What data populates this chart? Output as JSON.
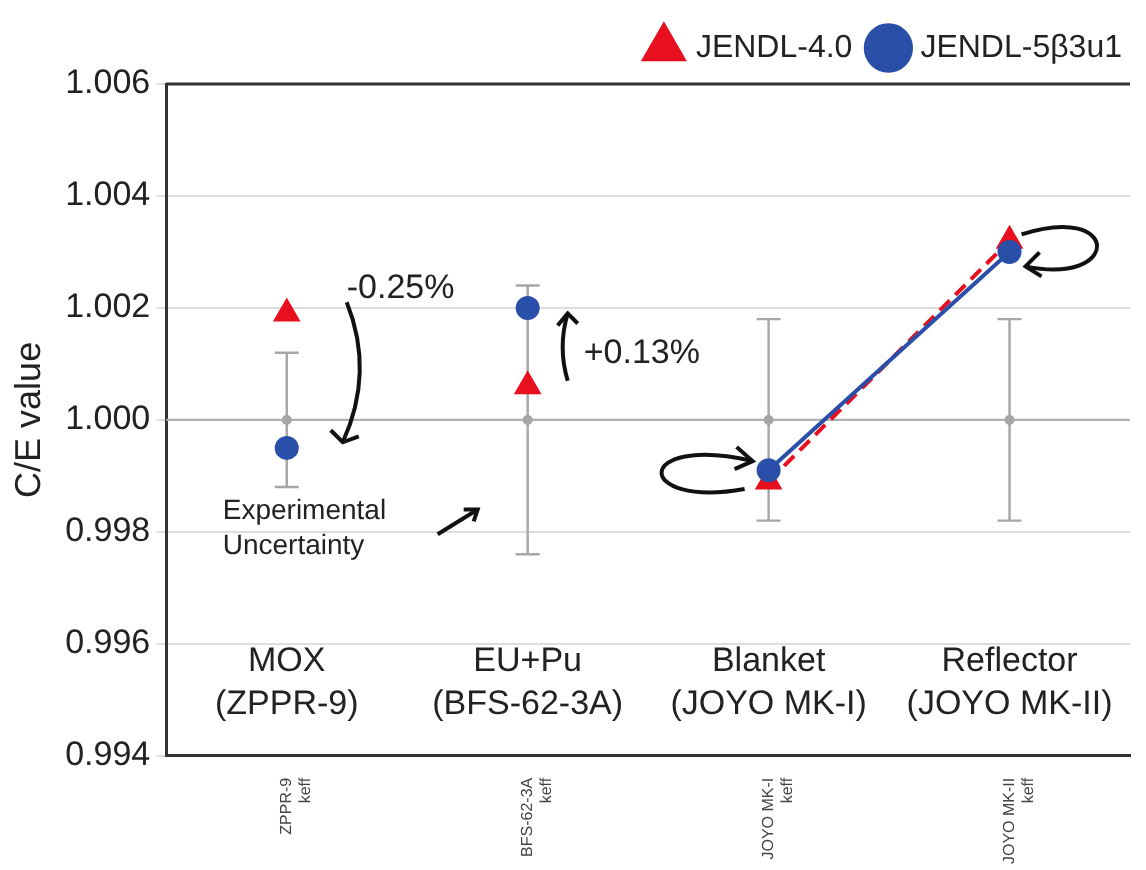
{
  "chart_data": {
    "type": "scatter",
    "ylabel": "C/E value",
    "categories": [
      "ZPPR-9\nkeff",
      "BFS-62-3A\nkeff",
      "JOYO MK-I\nkeff",
      "JOYO MK-II\nkeff"
    ],
    "ylim": [
      0.994,
      1.006
    ],
    "yticks": [
      0.994,
      0.996,
      0.998,
      {
        "value": 1,
        "label": "1.000"
      },
      1.002,
      1.004,
      1.006
    ],
    "ref_lines": [
      {
        "axis": "y",
        "value": 1,
        "color": "#b0b0b0"
      }
    ],
    "grid": "y",
    "legend": "top right",
    "series": [
      {
        "color": "#a6a6a6",
        "marker": "circle",
        "values": [
          1.0,
          1.0,
          1.0,
          1.0
        ],
        "errors": [
          0.0012,
          0.0024,
          0.0018,
          0.0018
        ]
      },
      {
        "type": "line",
        "color": "#e8101e",
        "marker": "none",
        "line_style": "dashed",
        "values": [
          null,
          null,
          0.9989,
          1.0032
        ]
      },
      {
        "type": "line",
        "color": "#2a4fa8",
        "marker": "none",
        "line_style": "solid",
        "values": [
          null,
          null,
          0.9991,
          1.003
        ]
      },
      {
        "name": "JENDL-4.0",
        "color": "#e8101e",
        "marker": "triangle",
        "values": [
          1.0019,
          1.0006,
          0.9989,
          1.0032
        ]
      },
      {
        "name": "JENDL-5β3u1",
        "color": "#2a4fa8",
        "marker": "circle",
        "values": [
          0.9995,
          1.002,
          0.9991,
          1.003
        ]
      }
    ],
    "annotations": [
      "MOX\n(ZPPR-9)",
      "EU+Pu\n(BFS-62-3A)",
      "Blanket\n(JOYO MK-I)",
      "Reflector\n(JOYO MK-II)",
      "-0.25%",
      "+0.13%",
      "Experimental\nUncertainty"
    ]
  }
}
